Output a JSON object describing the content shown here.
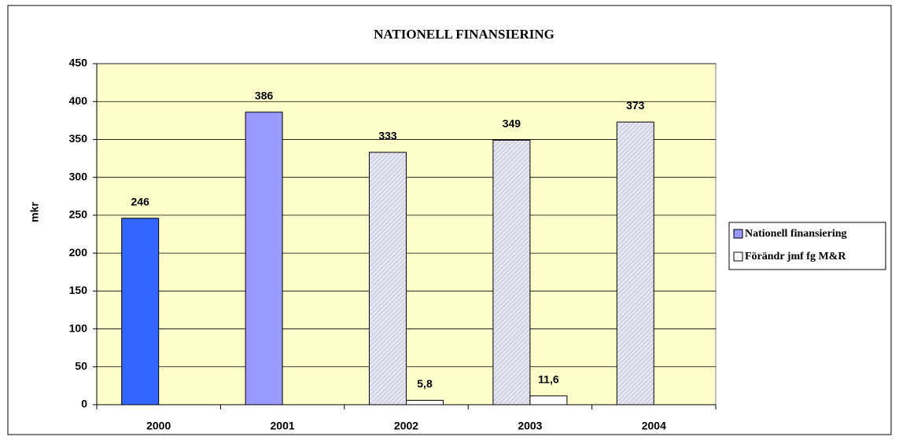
{
  "chart_data": {
    "type": "bar",
    "title": "NATIONELL FINANSIERING",
    "y_label": "mkr",
    "categories": [
      "2000",
      "2001",
      "2002",
      "2003",
      "2004"
    ],
    "series": [
      {
        "name": "Nationell finansiering",
        "color": "#9999ff",
        "values": [
          246,
          386,
          333,
          349,
          373
        ],
        "point_colors": [
          "#3366ff",
          "#9999ff",
          "#e6e6f2",
          "#e6e6f2",
          "#e6e6f2"
        ],
        "point_hatch": [
          false,
          false,
          true,
          true,
          true
        ]
      },
      {
        "name": "Förändr jmf fg M&R",
        "color": "#ffffff",
        "values": [
          null,
          null,
          5.8,
          11.6,
          null
        ],
        "value_labels": [
          null,
          null,
          "5,8",
          "11,6",
          null
        ]
      }
    ],
    "ylim": [
      0,
      450
    ],
    "yticks": [
      0,
      50,
      100,
      150,
      200,
      250,
      300,
      350,
      400,
      450
    ],
    "grid": true,
    "plot_background": "#ffffcc",
    "legend": "right"
  }
}
